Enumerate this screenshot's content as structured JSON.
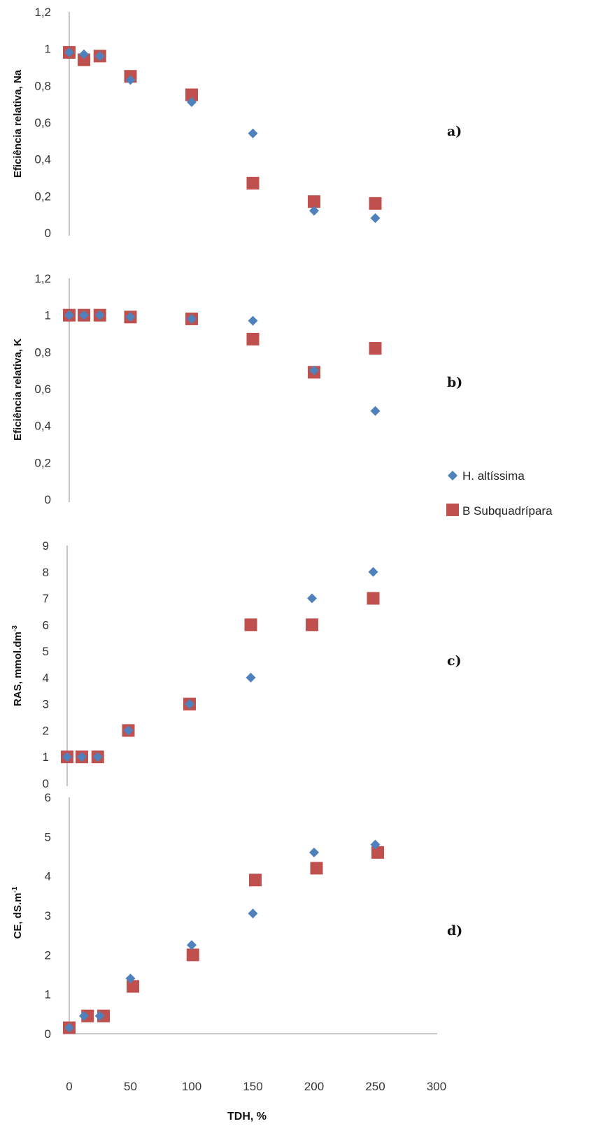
{
  "legend": {
    "series": [
      {
        "name": "H. altíssima",
        "color": "#4f81bd",
        "marker": "diamond"
      },
      {
        "name": "B Subquadrípara",
        "color": "#c0504d",
        "marker": "square"
      }
    ]
  },
  "x_axis": {
    "label": "TDH, %",
    "ticks": [
      "0",
      "50",
      "100",
      "150",
      "200",
      "250",
      "300"
    ],
    "range": [
      0,
      300
    ]
  },
  "chart_data": [
    {
      "type": "scatter",
      "panel": "a)",
      "ylabel": "Eficiência relativa, Na",
      "yticks": [
        "0",
        "0,2",
        "0,4",
        "0,6",
        "0,8",
        "1",
        "1,2"
      ],
      "ylim": [
        0,
        1.2
      ],
      "xlim": [
        0,
        300
      ],
      "grid": false,
      "series": [
        {
          "name": "H. altíssima",
          "points": [
            [
              0,
              0.98
            ],
            [
              12,
              0.97
            ],
            [
              25,
              0.96
            ],
            [
              50,
              0.83
            ],
            [
              100,
              0.71
            ],
            [
              150,
              0.54
            ],
            [
              200,
              0.12
            ],
            [
              250,
              0.08
            ]
          ]
        },
        {
          "name": "B Subquadrípara",
          "points": [
            [
              0,
              0.98
            ],
            [
              12,
              0.94
            ],
            [
              25,
              0.96
            ],
            [
              50,
              0.85
            ],
            [
              100,
              0.75
            ],
            [
              150,
              0.27
            ],
            [
              200,
              0.17
            ],
            [
              250,
              0.16
            ]
          ]
        }
      ]
    },
    {
      "type": "scatter",
      "panel": "b)",
      "ylabel": "Eficiência relativa, K",
      "yticks": [
        "0",
        "0,2",
        "0,4",
        "0,6",
        "0,8",
        "1",
        "1,2"
      ],
      "ylim": [
        0,
        1.2
      ],
      "xlim": [
        0,
        300
      ],
      "grid": false,
      "series": [
        {
          "name": "H. altíssima",
          "points": [
            [
              0,
              1.0
            ],
            [
              12,
              1.0
            ],
            [
              25,
              1.0
            ],
            [
              50,
              0.99
            ],
            [
              100,
              0.98
            ],
            [
              150,
              0.97
            ],
            [
              200,
              0.7
            ],
            [
              250,
              0.48
            ]
          ]
        },
        {
          "name": "B Subquadrípara",
          "points": [
            [
              0,
              1.0
            ],
            [
              12,
              1.0
            ],
            [
              25,
              1.0
            ],
            [
              50,
              0.99
            ],
            [
              100,
              0.98
            ],
            [
              150,
              0.87
            ],
            [
              200,
              0.69
            ],
            [
              250,
              0.82
            ]
          ]
        }
      ]
    },
    {
      "type": "scatter",
      "panel": "c)",
      "ylabel": "RAS, mmol.dm",
      "ylabel_sup": "-3",
      "yticks": [
        "0",
        "1",
        "2",
        "3",
        "4",
        "5",
        "6",
        "7",
        "8",
        "9"
      ],
      "ylim": [
        0,
        9
      ],
      "xlim": [
        0,
        300
      ],
      "grid": false,
      "series": [
        {
          "name": "H. altíssima",
          "points": [
            [
              0,
              1
            ],
            [
              12,
              1
            ],
            [
              25,
              1
            ],
            [
              50,
              2
            ],
            [
              100,
              3
            ],
            [
              150,
              4
            ],
            [
              200,
              7
            ],
            [
              250,
              8
            ]
          ]
        },
        {
          "name": "B Subquadrípara",
          "points": [
            [
              0,
              1
            ],
            [
              12,
              1
            ],
            [
              25,
              1
            ],
            [
              50,
              2
            ],
            [
              100,
              3
            ],
            [
              150,
              6
            ],
            [
              200,
              6
            ],
            [
              250,
              7
            ]
          ]
        }
      ]
    },
    {
      "type": "scatter",
      "panel": "d)",
      "ylabel": "CE, dS.m",
      "ylabel_sup": "-1",
      "yticks": [
        "0",
        "1",
        "2",
        "3",
        "4",
        "5",
        "6"
      ],
      "ylim": [
        0,
        6
      ],
      "xlim": [
        0,
        300
      ],
      "grid": false,
      "series": [
        {
          "name": "H. altíssima",
          "points": [
            [
              0,
              0.15
            ],
            [
              12,
              0.45
            ],
            [
              25,
              0.45
            ],
            [
              50,
              1.4
            ],
            [
              100,
              2.25
            ],
            [
              150,
              3.05
            ],
            [
              200,
              4.6
            ],
            [
              250,
              4.8
            ]
          ]
        },
        {
          "name": "B Subquadrípara",
          "points": [
            [
              0,
              0.15
            ],
            [
              15,
              0.45
            ],
            [
              28,
              0.45
            ],
            [
              52,
              1.2
            ],
            [
              101,
              2.0
            ],
            [
              152,
              3.9
            ],
            [
              202,
              4.2
            ],
            [
              252,
              4.6
            ]
          ]
        }
      ]
    }
  ]
}
